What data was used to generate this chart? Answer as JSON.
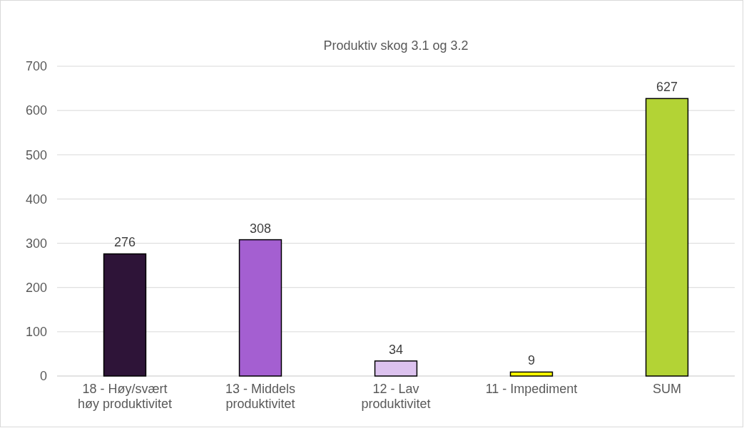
{
  "chart_data": {
    "type": "bar",
    "title": "Produktiv skog 3.1 og 3.2",
    "categories": [
      "18 - Høy/svært høy produktivitet",
      "13 - Middels produktivitet",
      "12 - Lav produktivitet",
      "11 - Impediment",
      "SUM"
    ],
    "values": [
      276,
      308,
      34,
      9,
      627
    ],
    "colors": [
      "#2e1438",
      "#a45fd1",
      "#dcc2ee",
      "#ffff00",
      "#b3d335"
    ],
    "ylim": [
      0,
      700
    ],
    "yticks": [
      0,
      100,
      200,
      300,
      400,
      500,
      600,
      700
    ],
    "grid": "y",
    "data_labels": true
  }
}
